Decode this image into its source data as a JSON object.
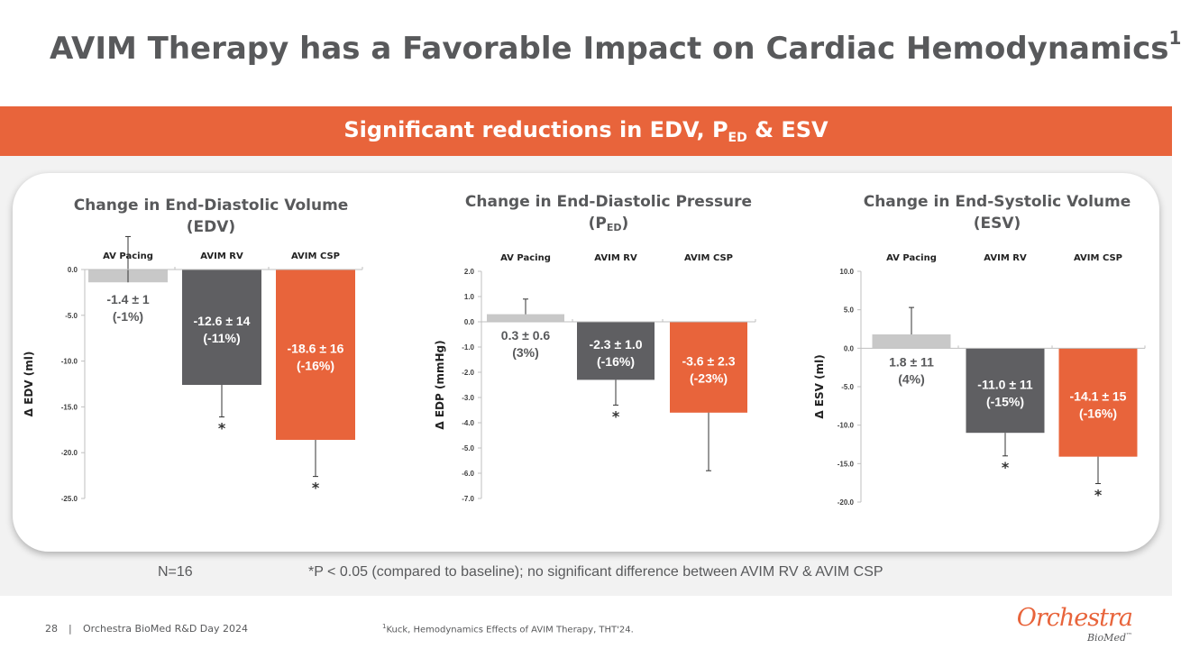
{
  "title": "AVIM Therapy has a Favorable Impact on Cardiac Hemodynamics",
  "title_sup": "1",
  "banner": {
    "text": "Significant reductions in EDV, P",
    "sub": "ED",
    "suffix": " & ESV"
  },
  "colors": {
    "accent": "#e8643b",
    "dark_gray": "#5f5f62",
    "light_gray": "#c8c8c8",
    "text_gray": "#58595b"
  },
  "chart_data": [
    {
      "type": "bar",
      "title_line1": "Change in End-Diastolic Volume",
      "title_line2": "(EDV)",
      "ylabel": "Δ EDV (ml)",
      "categories": [
        "AV Pacing",
        "AVIM RV",
        "AVIM CSP"
      ],
      "values": [
        -1.4,
        -12.6,
        -18.6
      ],
      "errors": [
        5.0,
        3.5,
        4.0
      ],
      "error_direction": [
        1,
        -1,
        -1
      ],
      "data_labels": [
        [
          "-1.4 ± 1",
          "(-1%)"
        ],
        [
          "-12.6 ± 14",
          "(-11%)"
        ],
        [
          "-18.6 ± 16",
          "(-16%)"
        ]
      ],
      "significant": [
        false,
        true,
        true
      ],
      "ylim": [
        -25,
        0
      ],
      "ticks": [
        0,
        -5,
        -10,
        -15,
        -20,
        -25
      ],
      "tick_labels": [
        "0.0",
        "-5.0",
        "-10.0",
        "-15.0",
        "-20.0",
        "-25.0"
      ]
    },
    {
      "type": "bar",
      "title_line1": "Change in End-Diastolic Pressure",
      "title_line2": "(P",
      "title_sub": "ED",
      "title_close": ")",
      "ylabel": "Δ EDP (mmHg)",
      "categories": [
        "AV Pacing",
        "AVIM RV",
        "AVIM CSP"
      ],
      "values": [
        0.3,
        -2.3,
        -3.6
      ],
      "errors": [
        0.6,
        1.0,
        2.3
      ],
      "error_direction": [
        1,
        -1,
        -1
      ],
      "data_labels": [
        [
          "0.3 ± 0.6",
          "(3%)"
        ],
        [
          "-2.3 ± 1.0",
          "(-16%)"
        ],
        [
          "-3.6 ± 2.3",
          "(-23%)"
        ]
      ],
      "significant": [
        false,
        true,
        false
      ],
      "ylim": [
        -7,
        2
      ],
      "ticks": [
        2,
        1,
        0,
        -1,
        -2,
        -3,
        -4,
        -5,
        -6,
        -7
      ],
      "tick_labels": [
        "2.0",
        "1.0",
        "0.0",
        "-1.0",
        "-2.0",
        "-3.0",
        "-4.0",
        "-5.0",
        "-6.0",
        "-7.0"
      ]
    },
    {
      "type": "bar",
      "title_line1": "Change in End-Systolic Volume",
      "title_line2": "(ESV)",
      "ylabel": "Δ ESV (ml)",
      "categories": [
        "AV Pacing",
        "AVIM RV",
        "AVIM CSP"
      ],
      "values": [
        1.8,
        -11.0,
        -14.1
      ],
      "errors": [
        3.5,
        3.0,
        3.5
      ],
      "error_direction": [
        1,
        -1,
        -1
      ],
      "data_labels": [
        [
          "1.8 ± 11",
          "(4%)"
        ],
        [
          "-11.0 ± 11",
          "(-15%)"
        ],
        [
          "-14.1 ± 15",
          "(-16%)"
        ]
      ],
      "significant": [
        false,
        true,
        true
      ],
      "ylim": [
        -20,
        10
      ],
      "ticks": [
        10,
        5,
        0,
        -5,
        -10,
        -15,
        -20
      ],
      "tick_labels": [
        "10.0",
        "5.0",
        "0.0",
        "-5.0",
        "-10.0",
        "-15.0",
        "-20.0"
      ]
    }
  ],
  "footnotes": {
    "n": "N=16",
    "p": "*P < 0.05 (compared to baseline); no significant difference between AVIM RV & AVIM CSP"
  },
  "footer": {
    "page": "28",
    "separator": "|",
    "event": "Orchestra BioMed R&D Day 2024",
    "ref_sup": "1",
    "reference": "Kuck, Hemodynamics Effects of AVIM Therapy, THT'24."
  },
  "logo": {
    "main": "Orchestra",
    "sub": "BioMed",
    "tm": "™"
  }
}
